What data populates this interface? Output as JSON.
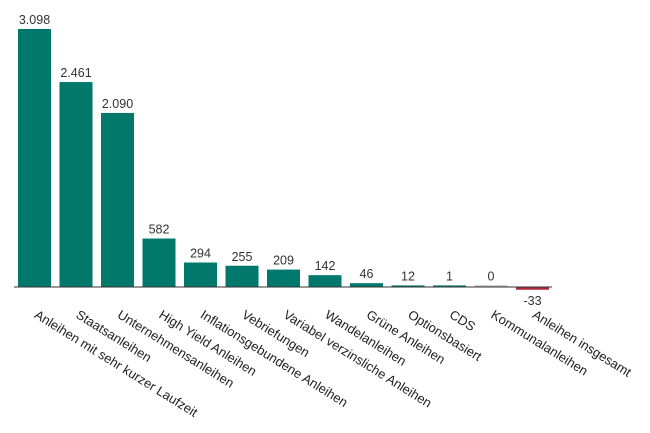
{
  "chart_data": {
    "type": "bar",
    "title": "",
    "xlabel": "",
    "ylabel": "",
    "grid": false,
    "legend": "none",
    "categories": [
      "Anleihen mit sehr kurzer Laufzeit",
      "Staatsanleihen",
      "Unternehmensanleihen",
      "High Yield Anleihen",
      "Inflationsgebundene Anleihen",
      "Vebriefungen",
      "Variabel verzinsliche Anleihen",
      "Wandelanleihen",
      "Grüne Anleihen",
      "Optionsbasiert",
      "CDS",
      "Kommunalanleihen",
      "Anleihen insgesamt"
    ],
    "values": [
      3098,
      2461,
      2090,
      582,
      294,
      255,
      209,
      142,
      46,
      12,
      1,
      0,
      -33
    ],
    "value_labels": [
      "3.098",
      "2.461",
      "2.090",
      "582",
      "294",
      "255",
      "209",
      "142",
      "46",
      "12",
      "1",
      "0",
      "-33"
    ],
    "colors": {
      "positive": "#00786c",
      "negative": "#b0283c",
      "zero_bar": "#b4b4b4",
      "axis": "#333333"
    }
  }
}
